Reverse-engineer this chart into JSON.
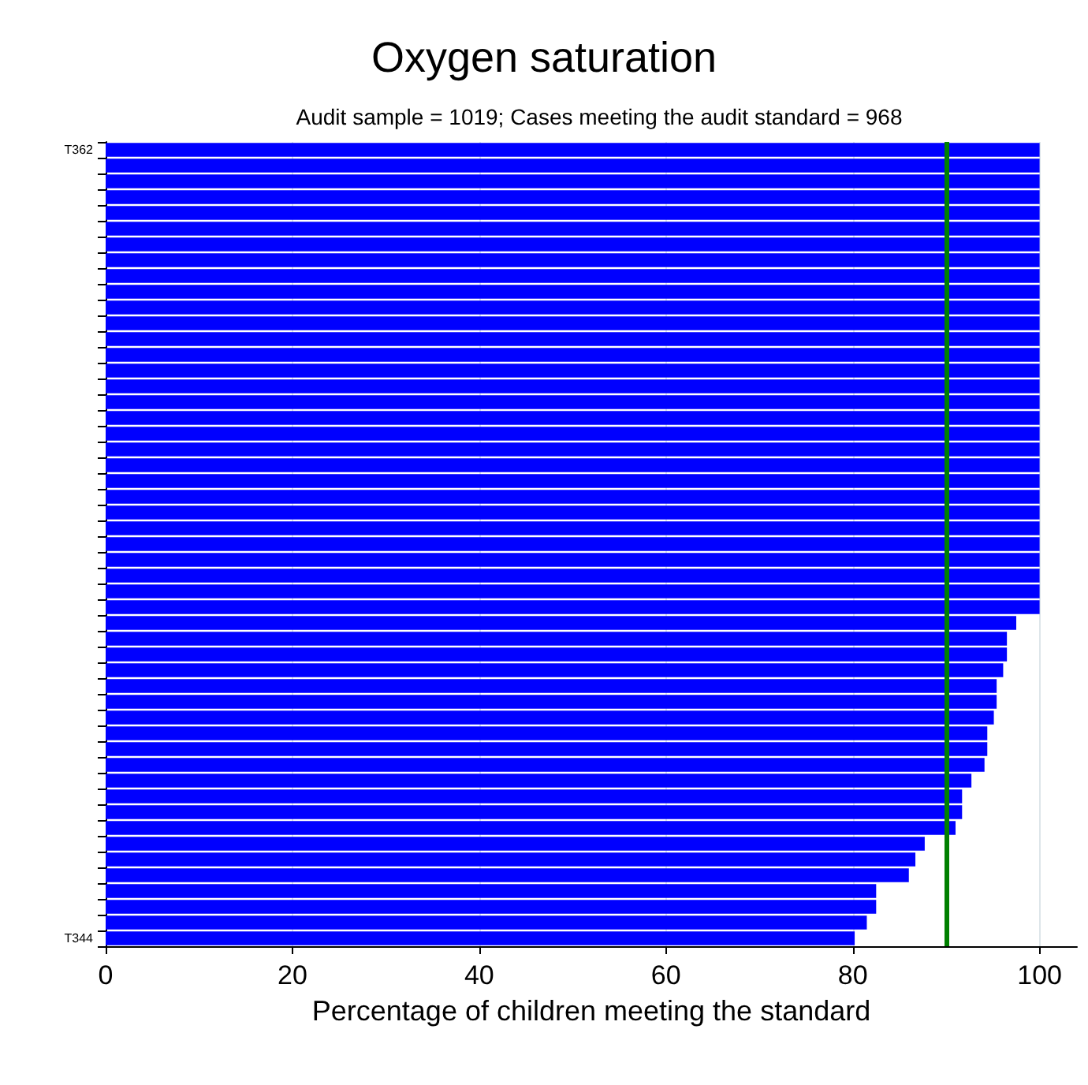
{
  "chart_data": {
    "type": "bar",
    "orientation": "horizontal",
    "title": "Oxygen saturation",
    "subtitle": "Audit sample = 1019; Cases meeting the audit standard = 968",
    "xlabel": "Percentage of children meeting the standard",
    "categories": [
      "T362",
      null,
      null,
      null,
      null,
      null,
      null,
      null,
      null,
      null,
      null,
      null,
      null,
      null,
      null,
      null,
      null,
      null,
      null,
      null,
      null,
      null,
      null,
      null,
      null,
      null,
      null,
      null,
      null,
      null,
      null,
      null,
      null,
      null,
      null,
      null,
      null,
      null,
      null,
      null,
      null,
      null,
      null,
      null,
      null,
      null,
      null,
      null,
      null,
      null,
      "T344"
    ],
    "values": [
      100,
      100,
      100,
      100,
      100,
      100,
      100,
      100,
      100,
      100,
      100,
      100,
      100,
      100,
      100,
      100,
      100,
      100,
      100,
      100,
      100,
      100,
      100,
      100,
      100,
      100,
      100,
      100,
      100,
      100,
      97.5,
      96.5,
      96.5,
      96.1,
      95.4,
      95.4,
      95.1,
      94.4,
      94.4,
      94.1,
      92.7,
      91.7,
      91.7,
      91,
      87.7,
      86.7,
      86,
      82.5,
      82.5,
      81.5,
      80.2
    ],
    "color": "#0000ff",
    "xlim": [
      0,
      104
    ],
    "xticks": [
      0,
      20,
      40,
      60,
      80,
      100
    ],
    "grid": "x",
    "ref_lines": [
      {
        "axis": "x",
        "value": 90,
        "color": "#008000"
      }
    ]
  }
}
